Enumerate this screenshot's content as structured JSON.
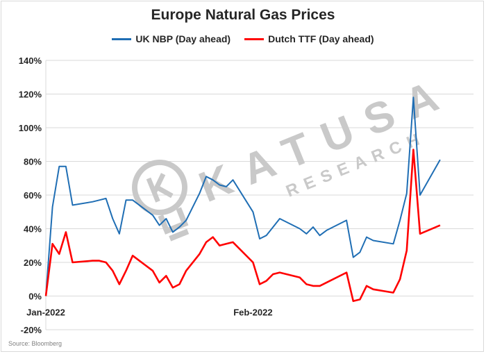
{
  "chart_data": {
    "type": "line",
    "title": "Europe Natural Gas Prices",
    "xlabel": "",
    "ylabel": "",
    "ylim": [
      -20,
      140
    ],
    "yticks": [
      -20,
      0,
      20,
      40,
      60,
      80,
      100,
      120,
      140
    ],
    "ytick_labels": [
      "-20%",
      "0%",
      "20%",
      "40%",
      "60%",
      "80%",
      "100%",
      "120%",
      "140%"
    ],
    "xlim": [
      "2022-01-03",
      "2022-03-08"
    ],
    "xticks": [
      {
        "date": "2022-01-03",
        "label": "Jan-2022"
      },
      {
        "date": "2022-02-03",
        "label": "Feb-2022"
      }
    ],
    "grid": "horizontal",
    "legend_position": "top",
    "series": [
      {
        "name": "UK NBP (Day ahead)",
        "color": "#1f6eb4",
        "points": [
          [
            "2022-01-03",
            0
          ],
          [
            "2022-01-04",
            53
          ],
          [
            "2022-01-05",
            77
          ],
          [
            "2022-01-06",
            77
          ],
          [
            "2022-01-07",
            54
          ],
          [
            "2022-01-10",
            56
          ],
          [
            "2022-01-11",
            57
          ],
          [
            "2022-01-12",
            58
          ],
          [
            "2022-01-13",
            46
          ],
          [
            "2022-01-14",
            37
          ],
          [
            "2022-01-15",
            57
          ],
          [
            "2022-01-16",
            57
          ],
          [
            "2022-01-19",
            48
          ],
          [
            "2022-01-20",
            42
          ],
          [
            "2022-01-21",
            46
          ],
          [
            "2022-01-22",
            38
          ],
          [
            "2022-01-23",
            41
          ],
          [
            "2022-01-24",
            45
          ],
          [
            "2022-01-26",
            61
          ],
          [
            "2022-01-27",
            71
          ],
          [
            "2022-01-28",
            69
          ],
          [
            "2022-01-29",
            66
          ],
          [
            "2022-01-30",
            65
          ],
          [
            "2022-01-31",
            69
          ],
          [
            "2022-02-03",
            50
          ],
          [
            "2022-02-04",
            34
          ],
          [
            "2022-02-05",
            36
          ],
          [
            "2022-02-06",
            41
          ],
          [
            "2022-02-07",
            46
          ],
          [
            "2022-02-10",
            40
          ],
          [
            "2022-02-11",
            37
          ],
          [
            "2022-02-12",
            41
          ],
          [
            "2022-02-13",
            36
          ],
          [
            "2022-02-14",
            39
          ],
          [
            "2022-02-17",
            45
          ],
          [
            "2022-02-18",
            23
          ],
          [
            "2022-02-19",
            26
          ],
          [
            "2022-02-20",
            35
          ],
          [
            "2022-02-21",
            33
          ],
          [
            "2022-02-24",
            31
          ],
          [
            "2022-02-25",
            45
          ],
          [
            "2022-02-26",
            61
          ],
          [
            "2022-02-27",
            118
          ],
          [
            "2022-02-28",
            60
          ],
          [
            "2022-03-03",
            81
          ]
        ]
      },
      {
        "name": "Dutch TTF (Day ahead)",
        "color": "#ff0000",
        "points": [
          [
            "2022-01-03",
            0
          ],
          [
            "2022-01-04",
            31
          ],
          [
            "2022-01-05",
            25
          ],
          [
            "2022-01-06",
            38
          ],
          [
            "2022-01-07",
            20
          ],
          [
            "2022-01-10",
            21
          ],
          [
            "2022-01-11",
            21
          ],
          [
            "2022-01-12",
            20
          ],
          [
            "2022-01-13",
            15
          ],
          [
            "2022-01-14",
            7
          ],
          [
            "2022-01-15",
            15
          ],
          [
            "2022-01-16",
            24
          ],
          [
            "2022-01-19",
            15
          ],
          [
            "2022-01-20",
            8
          ],
          [
            "2022-01-21",
            12
          ],
          [
            "2022-01-22",
            5
          ],
          [
            "2022-01-23",
            7
          ],
          [
            "2022-01-24",
            15
          ],
          [
            "2022-01-26",
            25
          ],
          [
            "2022-01-27",
            32
          ],
          [
            "2022-01-28",
            35
          ],
          [
            "2022-01-29",
            30
          ],
          [
            "2022-01-30",
            31
          ],
          [
            "2022-01-31",
            32
          ],
          [
            "2022-02-03",
            20
          ],
          [
            "2022-02-04",
            7
          ],
          [
            "2022-02-05",
            9
          ],
          [
            "2022-02-06",
            13
          ],
          [
            "2022-02-07",
            14
          ],
          [
            "2022-02-10",
            11
          ],
          [
            "2022-02-11",
            7
          ],
          [
            "2022-02-12",
            6
          ],
          [
            "2022-02-13",
            6
          ],
          [
            "2022-02-14",
            8
          ],
          [
            "2022-02-17",
            14
          ],
          [
            "2022-02-18",
            -3
          ],
          [
            "2022-02-19",
            -2
          ],
          [
            "2022-02-20",
            6
          ],
          [
            "2022-02-21",
            4
          ],
          [
            "2022-02-24",
            2
          ],
          [
            "2022-02-25",
            10
          ],
          [
            "2022-02-26",
            27
          ],
          [
            "2022-02-27",
            87
          ],
          [
            "2022-02-28",
            37
          ],
          [
            "2022-03-03",
            42
          ]
        ]
      }
    ]
  },
  "watermark": {
    "line1": "KATUSA",
    "line2": "RESEARCH",
    "color": "#c9c9c9"
  },
  "colors": {
    "gridline": "#d9d9d9",
    "axis_text": "#262626"
  },
  "source_note": "Source: Bloomberg"
}
